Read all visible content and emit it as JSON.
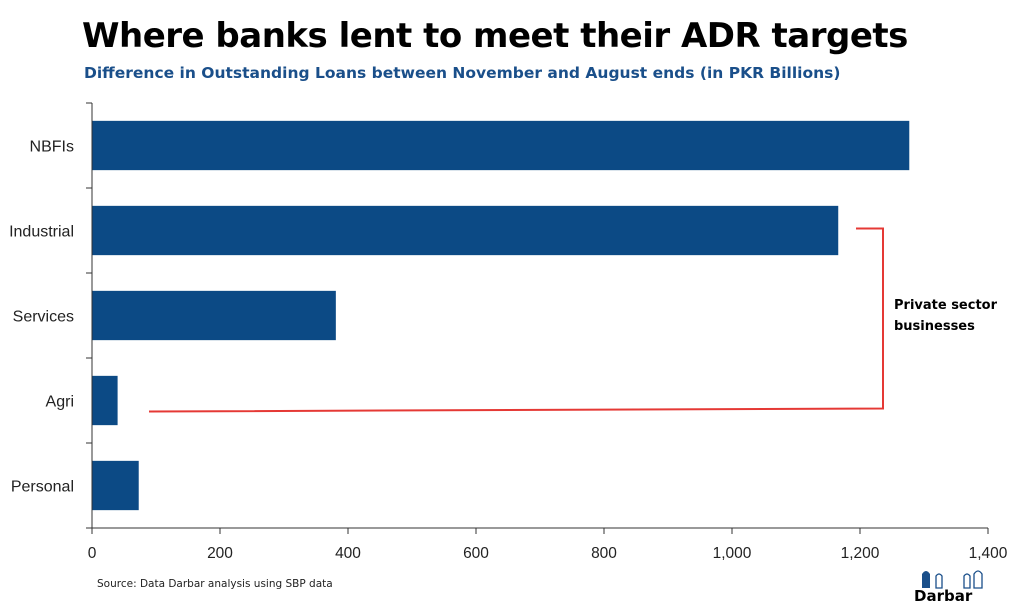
{
  "header": {
    "title": "Where banks lent to meet their ADR targets",
    "subtitle": "Difference in Outstanding Loans between November and August ends (in PKR Billions)"
  },
  "chart_data": {
    "type": "bar",
    "orientation": "horizontal",
    "categories": [
      "NBFIs",
      "Industrial",
      "Services",
      "Agri",
      "Personal"
    ],
    "values": [
      1277,
      1166,
      381,
      40,
      73
    ],
    "xlim": [
      0,
      1400
    ],
    "xticks": [
      "0",
      "200",
      "400",
      "600",
      "800",
      "1,000",
      "1,200",
      "1,400"
    ],
    "bar_color": "#0c4a85",
    "grid": false,
    "annotation": {
      "text_line1": "Private sector",
      "text_line2": "businesses",
      "bracket_color": "#e53935",
      "bracket_categories": [
        "Industrial",
        "Agri"
      ]
    }
  },
  "footer": {
    "source": "Source: Data Darbar analysis using SBP data",
    "logo_top": "DaTa",
    "logo_bottom": "Darbar"
  }
}
